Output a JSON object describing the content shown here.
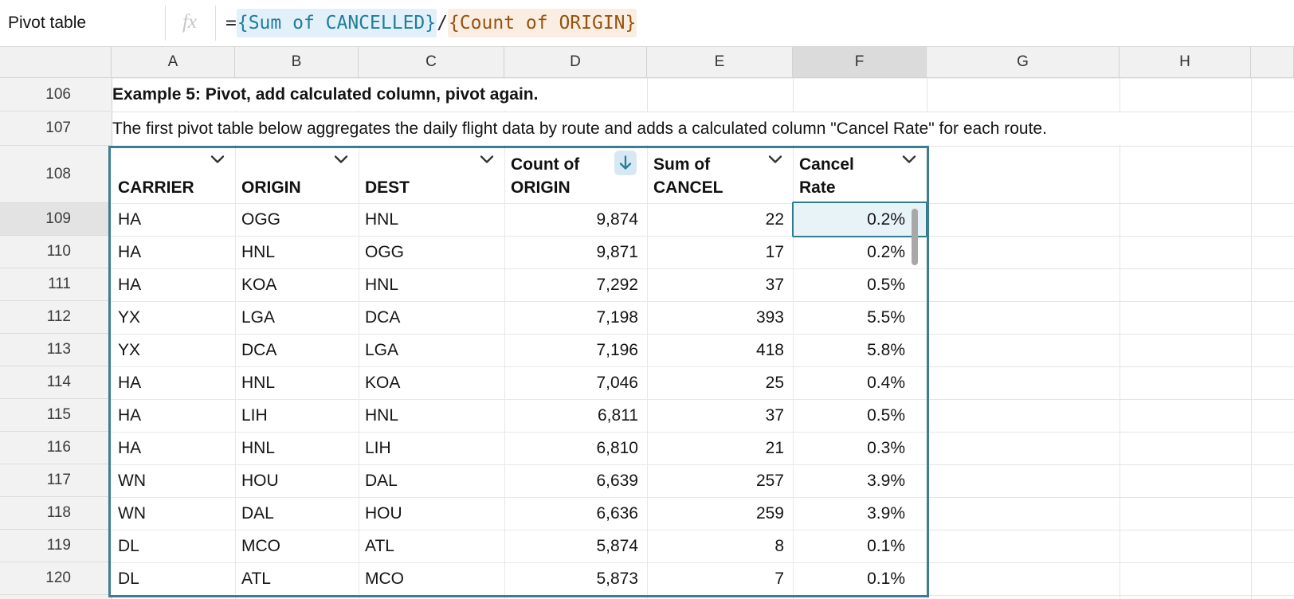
{
  "formula_bar": {
    "table_name": "Pivot table",
    "fx_label": "fx",
    "tokens": [
      {
        "text": "=",
        "type": "plain"
      },
      {
        "text": "{Sum of CANCELLED}",
        "type": "cyan"
      },
      {
        "text": "/",
        "type": "plain"
      },
      {
        "text": "{Count of ORIGIN}",
        "type": "orange"
      }
    ]
  },
  "grid": {
    "column_letters": [
      "A",
      "B",
      "C",
      "D",
      "E",
      "F",
      "G",
      "H"
    ],
    "selected_column": "F",
    "row_numbers": [
      106,
      107,
      108,
      109,
      110,
      111,
      112,
      113,
      114,
      115,
      116,
      117,
      118,
      119,
      120
    ],
    "selected_row": 109
  },
  "notes": {
    "row106": "Example 5: Pivot, add calculated column, pivot again.",
    "row107": "The first pivot table below aggregates the daily flight data by route and adds a calculated column \"Cancel Rate\" for each route."
  },
  "pivot_table": {
    "columns": [
      {
        "label": "CARRIER",
        "control": "chevron"
      },
      {
        "label": "ORIGIN",
        "control": "chevron"
      },
      {
        "label": "DEST",
        "control": "chevron"
      },
      {
        "label": "Count of ORIGIN",
        "control": "sort-desc"
      },
      {
        "label": "Sum of CANCEL",
        "control": "chevron"
      },
      {
        "label": "Cancel Rate",
        "control": "chevron"
      }
    ],
    "rows": [
      [
        "HA",
        "OGG",
        "HNL",
        "9,874",
        "22",
        "0.2%"
      ],
      [
        "HA",
        "HNL",
        "OGG",
        "9,871",
        "17",
        "0.2%"
      ],
      [
        "HA",
        "KOA",
        "HNL",
        "7,292",
        "37",
        "0.5%"
      ],
      [
        "YX",
        "LGA",
        "DCA",
        "7,198",
        "393",
        "5.5%"
      ],
      [
        "YX",
        "DCA",
        "LGA",
        "7,196",
        "418",
        "5.8%"
      ],
      [
        "HA",
        "HNL",
        "KOA",
        "7,046",
        "25",
        "0.4%"
      ],
      [
        "HA",
        "LIH",
        "HNL",
        "6,811",
        "37",
        "0.5%"
      ],
      [
        "HA",
        "HNL",
        "LIH",
        "6,810",
        "21",
        "0.3%"
      ],
      [
        "WN",
        "HOU",
        "DAL",
        "6,639",
        "257",
        "3.9%"
      ],
      [
        "WN",
        "DAL",
        "HOU",
        "6,636",
        "259",
        "3.9%"
      ],
      [
        "DL",
        "MCO",
        "ATL",
        "5,874",
        "8",
        "0.1%"
      ],
      [
        "DL",
        "ATL",
        "MCO",
        "5,873",
        "7",
        "0.1%"
      ]
    ],
    "selected_cell": {
      "row": 109,
      "column": "F",
      "value": "0.2%"
    }
  },
  "icons": {
    "fx-icon": "fx",
    "chevron-down-icon": "v",
    "sort-descending-icon": "down-arrow"
  },
  "colors": {
    "table_border_teal": "#3c7e91",
    "selection_teal": "#2f7c91",
    "selection_fill": "#e8f3f8",
    "sort_icon_bg": "#d6e9f2",
    "token_sum_text": "#1f7e9a",
    "token_sum_bg": "#e2f0f9",
    "token_count_text": "#98520f",
    "token_count_bg": "#faeee3"
  }
}
